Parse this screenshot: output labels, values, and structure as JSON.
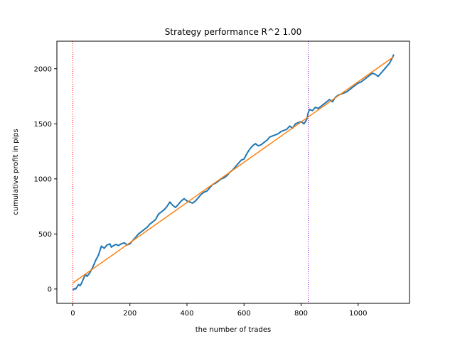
{
  "chart_data": {
    "type": "line",
    "title": "Strategy performance R^2 1.00",
    "xlabel": "the number of trades",
    "ylabel": "cumulative profit in pips",
    "xlim": [
      -56,
      1180
    ],
    "ylim": [
      -130,
      2250
    ],
    "xticks": [
      0,
      200,
      400,
      600,
      800,
      1000
    ],
    "yticks": [
      0,
      500,
      1000,
      1500,
      2000
    ],
    "grid": false,
    "legend": "none",
    "series": [
      {
        "color": "#1f77b4",
        "x": [
          0,
          6,
          10,
          15,
          20,
          25,
          30,
          35,
          40,
          45,
          50,
          60,
          70,
          80,
          90,
          100,
          110,
          120,
          130,
          135,
          140,
          150,
          160,
          170,
          180,
          190,
          200,
          210,
          220,
          230,
          240,
          250,
          260,
          270,
          280,
          290,
          300,
          310,
          320,
          330,
          340,
          350,
          360,
          370,
          380,
          390,
          400,
          410,
          420,
          430,
          440,
          450,
          460,
          470,
          480,
          490,
          500,
          510,
          520,
          530,
          540,
          550,
          560,
          570,
          580,
          590,
          600,
          610,
          620,
          630,
          640,
          650,
          660,
          670,
          680,
          690,
          700,
          710,
          720,
          730,
          740,
          750,
          760,
          770,
          780,
          790,
          800,
          810,
          820,
          825,
          830,
          840,
          850,
          860,
          870,
          880,
          890,
          900,
          910,
          920,
          930,
          940,
          950,
          960,
          970,
          980,
          990,
          1000,
          1010,
          1020,
          1030,
          1040,
          1050,
          1060,
          1070,
          1080,
          1090,
          1100,
          1110,
          1120,
          1125
        ],
        "values": [
          -10,
          5,
          0,
          20,
          40,
          30,
          50,
          80,
          110,
          130,
          115,
          150,
          200,
          260,
          310,
          390,
          370,
          400,
          410,
          380,
          390,
          405,
          395,
          410,
          420,
          400,
          410,
          440,
          470,
          500,
          520,
          540,
          560,
          590,
          610,
          630,
          680,
          700,
          720,
          750,
          790,
          760,
          740,
          770,
          800,
          820,
          800,
          790,
          780,
          800,
          830,
          860,
          880,
          890,
          920,
          950,
          960,
          980,
          1000,
          1010,
          1030,
          1060,
          1080,
          1110,
          1140,
          1170,
          1180,
          1230,
          1270,
          1300,
          1320,
          1300,
          1310,
          1330,
          1350,
          1380,
          1390,
          1400,
          1410,
          1430,
          1440,
          1450,
          1480,
          1460,
          1500,
          1510,
          1520,
          1500,
          1540,
          1600,
          1630,
          1620,
          1650,
          1640,
          1660,
          1680,
          1700,
          1720,
          1700,
          1740,
          1760,
          1770,
          1780,
          1790,
          1810,
          1830,
          1850,
          1870,
          1880,
          1900,
          1920,
          1940,
          1960,
          1950,
          1930,
          1960,
          1990,
          2020,
          2050,
          2100,
          2130
        ]
      },
      {
        "color": "#ff7f0e",
        "x": [
          0,
          1125
        ],
        "values": [
          55,
          2110
        ]
      }
    ],
    "vlines": [
      {
        "x": 0,
        "color": "#ff0000"
      },
      {
        "x": 825,
        "color": "#8800cc"
      }
    ]
  }
}
